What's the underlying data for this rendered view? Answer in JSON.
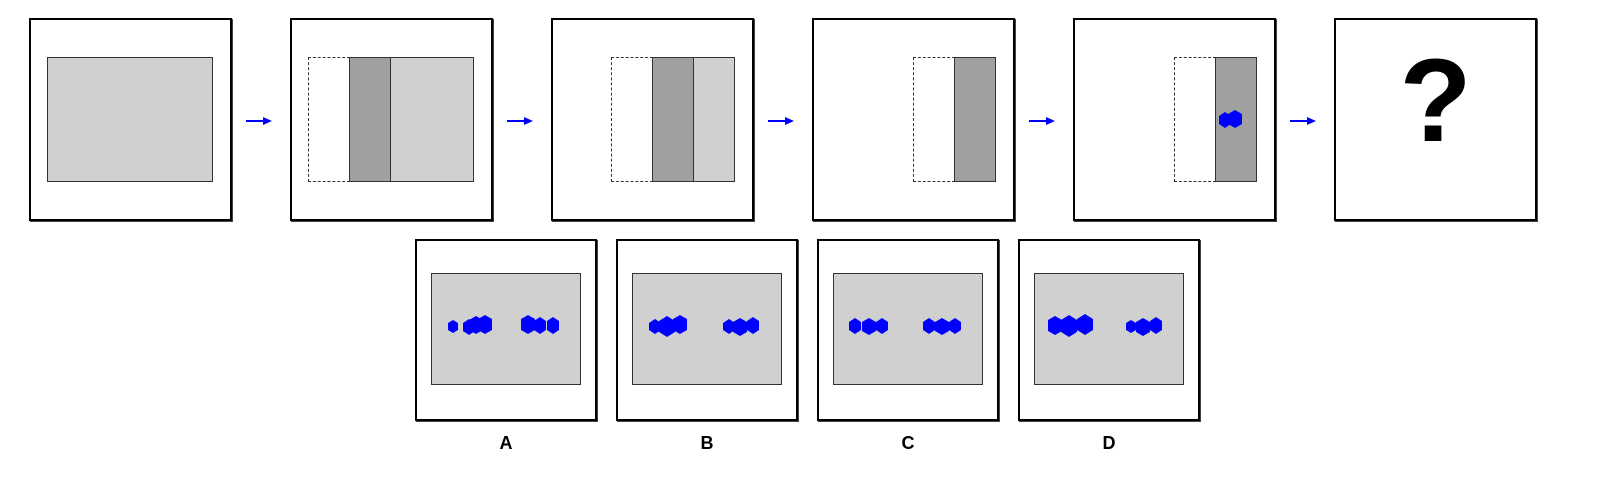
{
  "question_mark": "?",
  "options": [
    {
      "label": "A"
    },
    {
      "label": "B"
    },
    {
      "label": "C"
    },
    {
      "label": "D"
    }
  ],
  "colors": {
    "paper": "#d0d0d0",
    "fold": "#a0a0a0",
    "punch": "#0000ff",
    "arrow": "#0000ff"
  }
}
